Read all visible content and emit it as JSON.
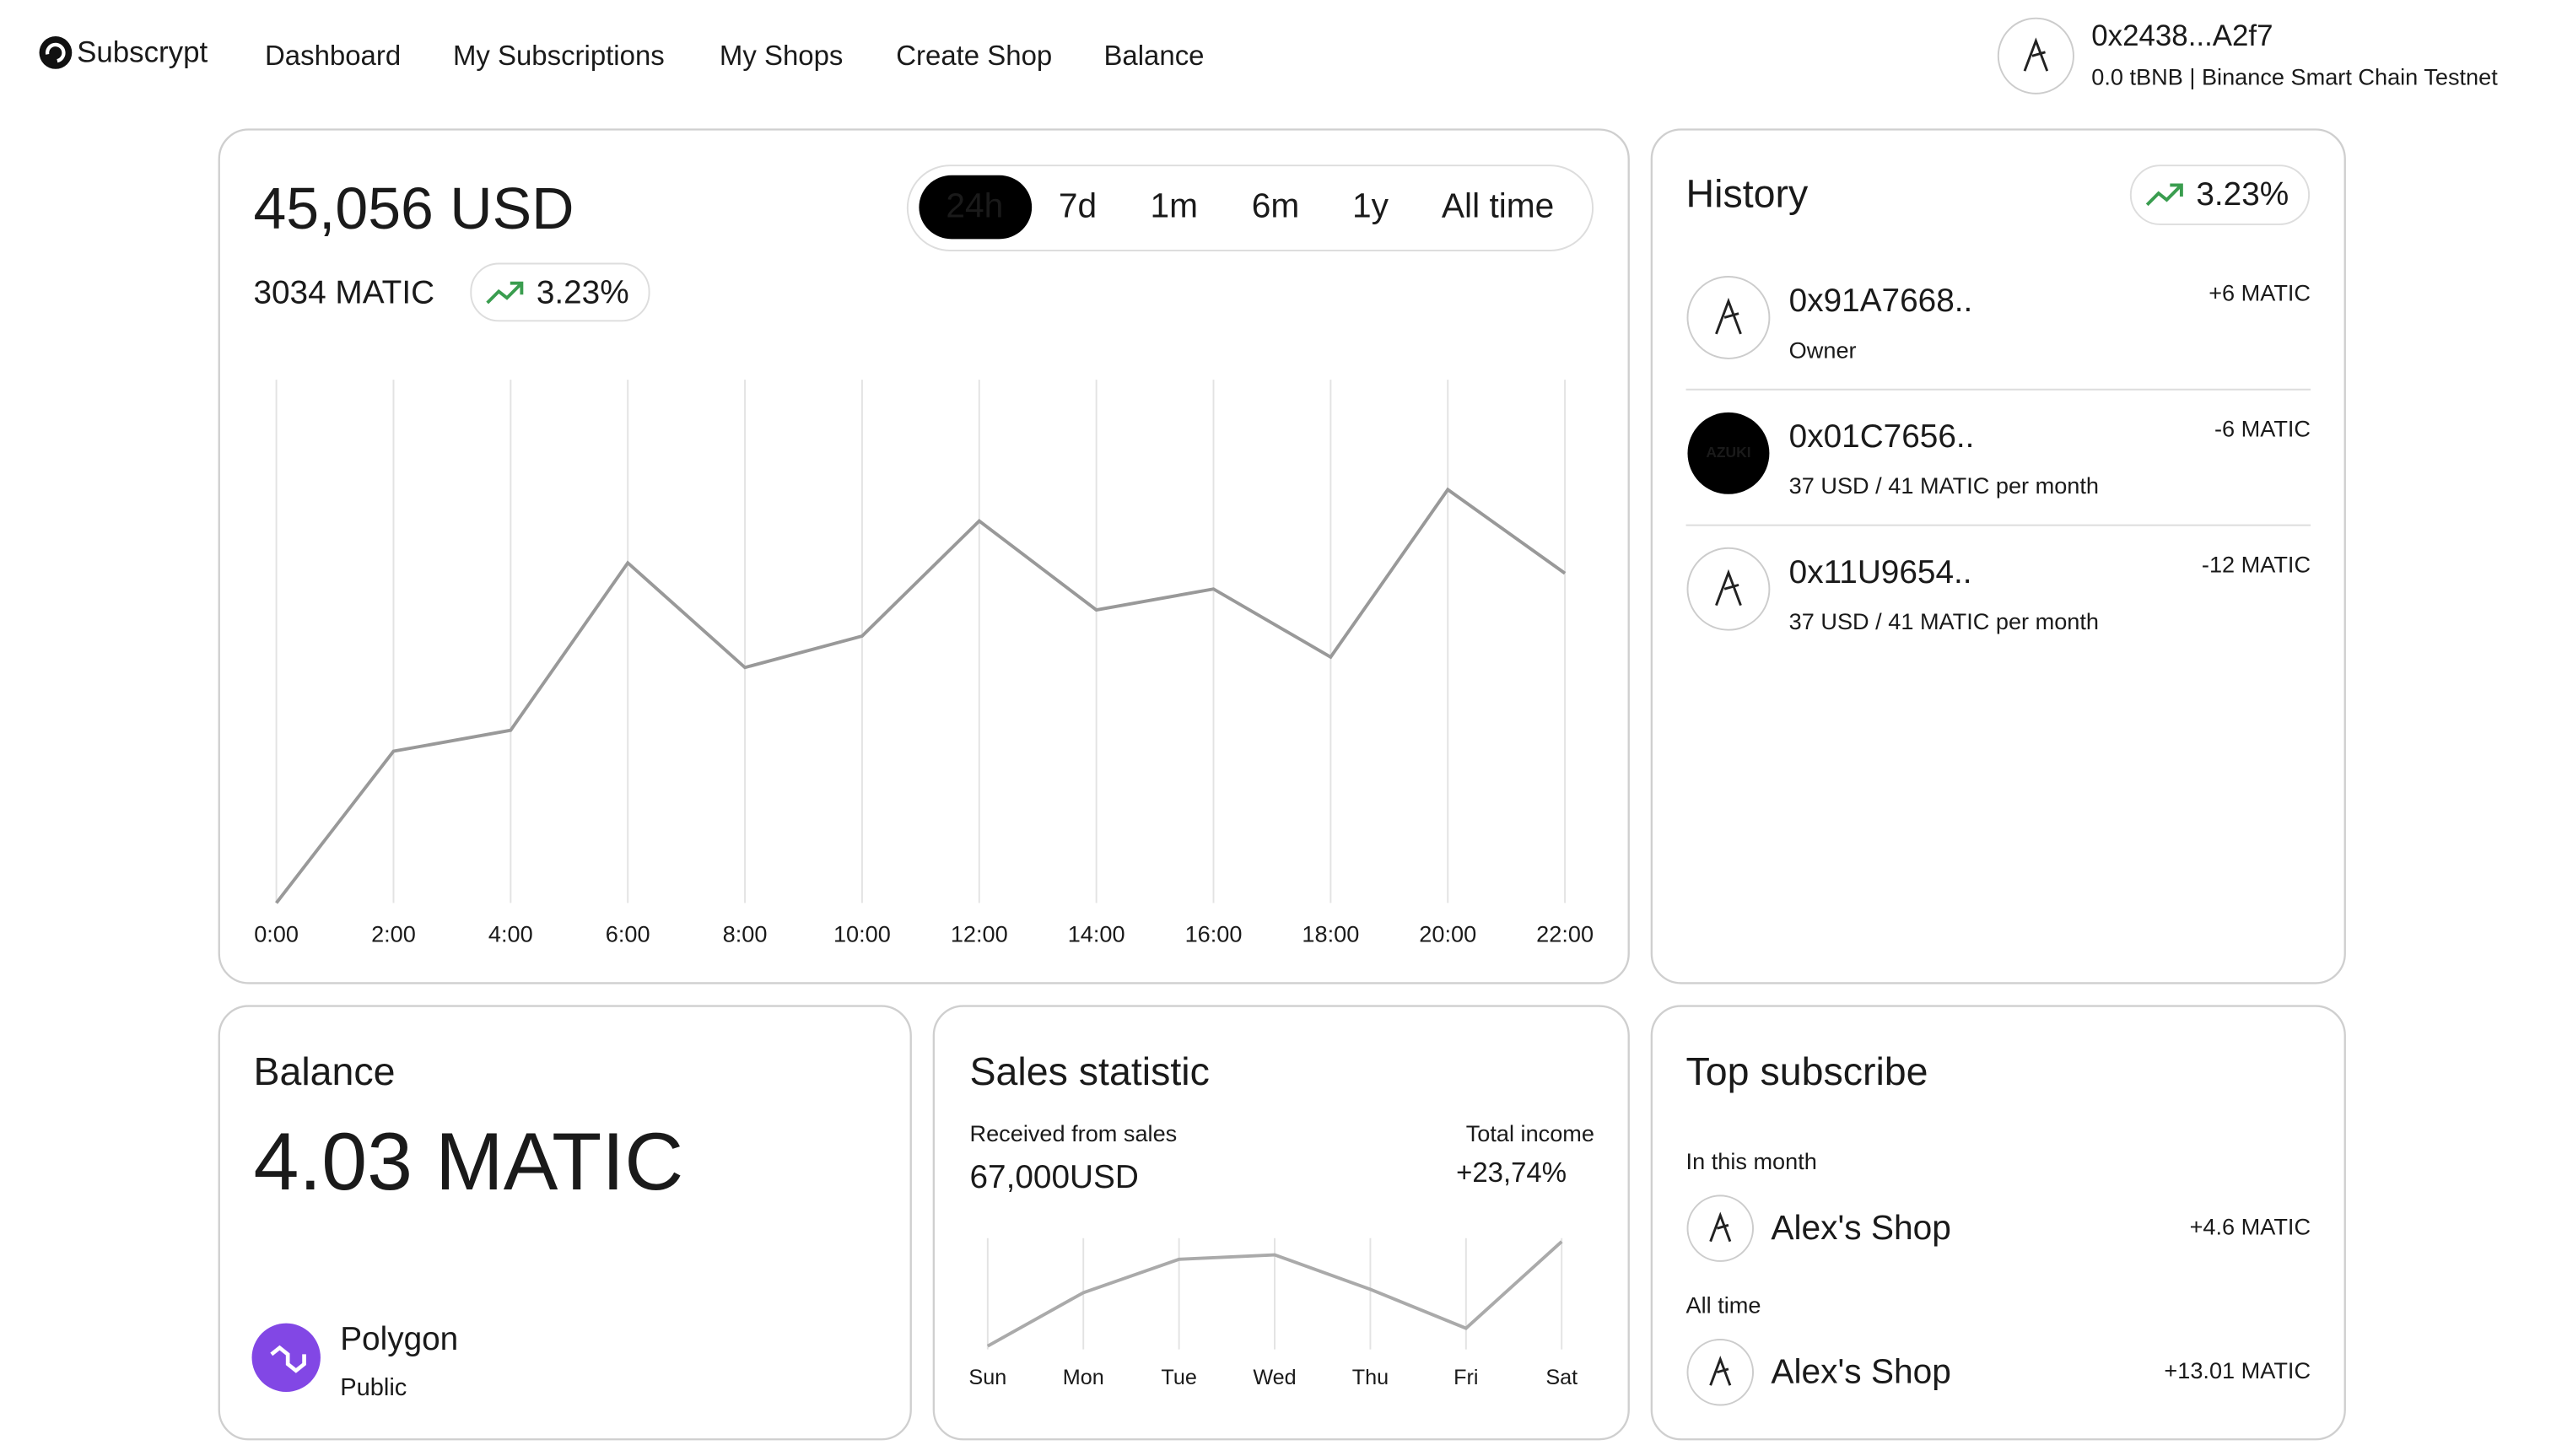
{
  "nav": {
    "brand": "Subscrypt",
    "links": [
      "Dashboard",
      "My Subscriptions",
      "My Shops",
      "Create Shop",
      "Balance"
    ]
  },
  "wallet": {
    "address": "0x2438...A2f7",
    "network": "0.0 tBNB | Binance Smart Chain Testnet"
  },
  "overview": {
    "total": "45,056 USD",
    "matic": "3034 MATIC",
    "change": "3.23%",
    "ranges": [
      "24h",
      "7d",
      "1m",
      "6m",
      "1y",
      "All time"
    ],
    "active_range": 0,
    "chart_data": {
      "type": "line",
      "categories": [
        "0:00",
        "2:00",
        "4:00",
        "6:00",
        "8:00",
        "10:00",
        "12:00",
        "14:00",
        "16:00",
        "18:00",
        "20:00",
        "22:00"
      ],
      "values": [
        0,
        29,
        33,
        65,
        45,
        51,
        73,
        56,
        60,
        47,
        79,
        63
      ],
      "ylim": [
        0,
        100
      ],
      "color": "#999999",
      "grid": true
    }
  },
  "history": {
    "title": "History",
    "change": "3.23%",
    "items": [
      {
        "address": "0x91A7668..",
        "detail": "Owner",
        "amount": "+6 MATIC"
      },
      {
        "address": "0x01C7656..",
        "detail": "37 USD / 41 MATIC per month",
        "amount": "-6 MATIC",
        "logo": "AZUKI"
      },
      {
        "address": "0x11U9654..",
        "detail": "37 USD / 41 MATIC per month",
        "amount": "-12 MATIC"
      }
    ]
  },
  "balance": {
    "title": "Balance",
    "amount": "4.03 MATIC",
    "network": "Polygon",
    "type": "Public"
  },
  "sales": {
    "title": "Sales statistic",
    "received_label": "Received from sales",
    "received": "67,000USD",
    "income_label": "Total income",
    "income": "+23,74%",
    "chart_data": {
      "type": "line",
      "categories": [
        "Sun",
        "Mon",
        "Tue",
        "Wed",
        "Thu",
        "Fri",
        "Sat"
      ],
      "values": [
        3,
        51,
        81,
        85,
        54,
        19,
        97
      ],
      "ylim": [
        0,
        100
      ],
      "color": "#aaaaaa",
      "grid": true
    }
  },
  "top": {
    "title": "Top subscribe",
    "sections": [
      {
        "label": "In this month",
        "shop": "Alex's Shop",
        "amount": "+4.6 MATIC"
      },
      {
        "label": "All time",
        "shop": "Alex's Shop",
        "amount": "+13.01 MATIC"
      }
    ]
  }
}
